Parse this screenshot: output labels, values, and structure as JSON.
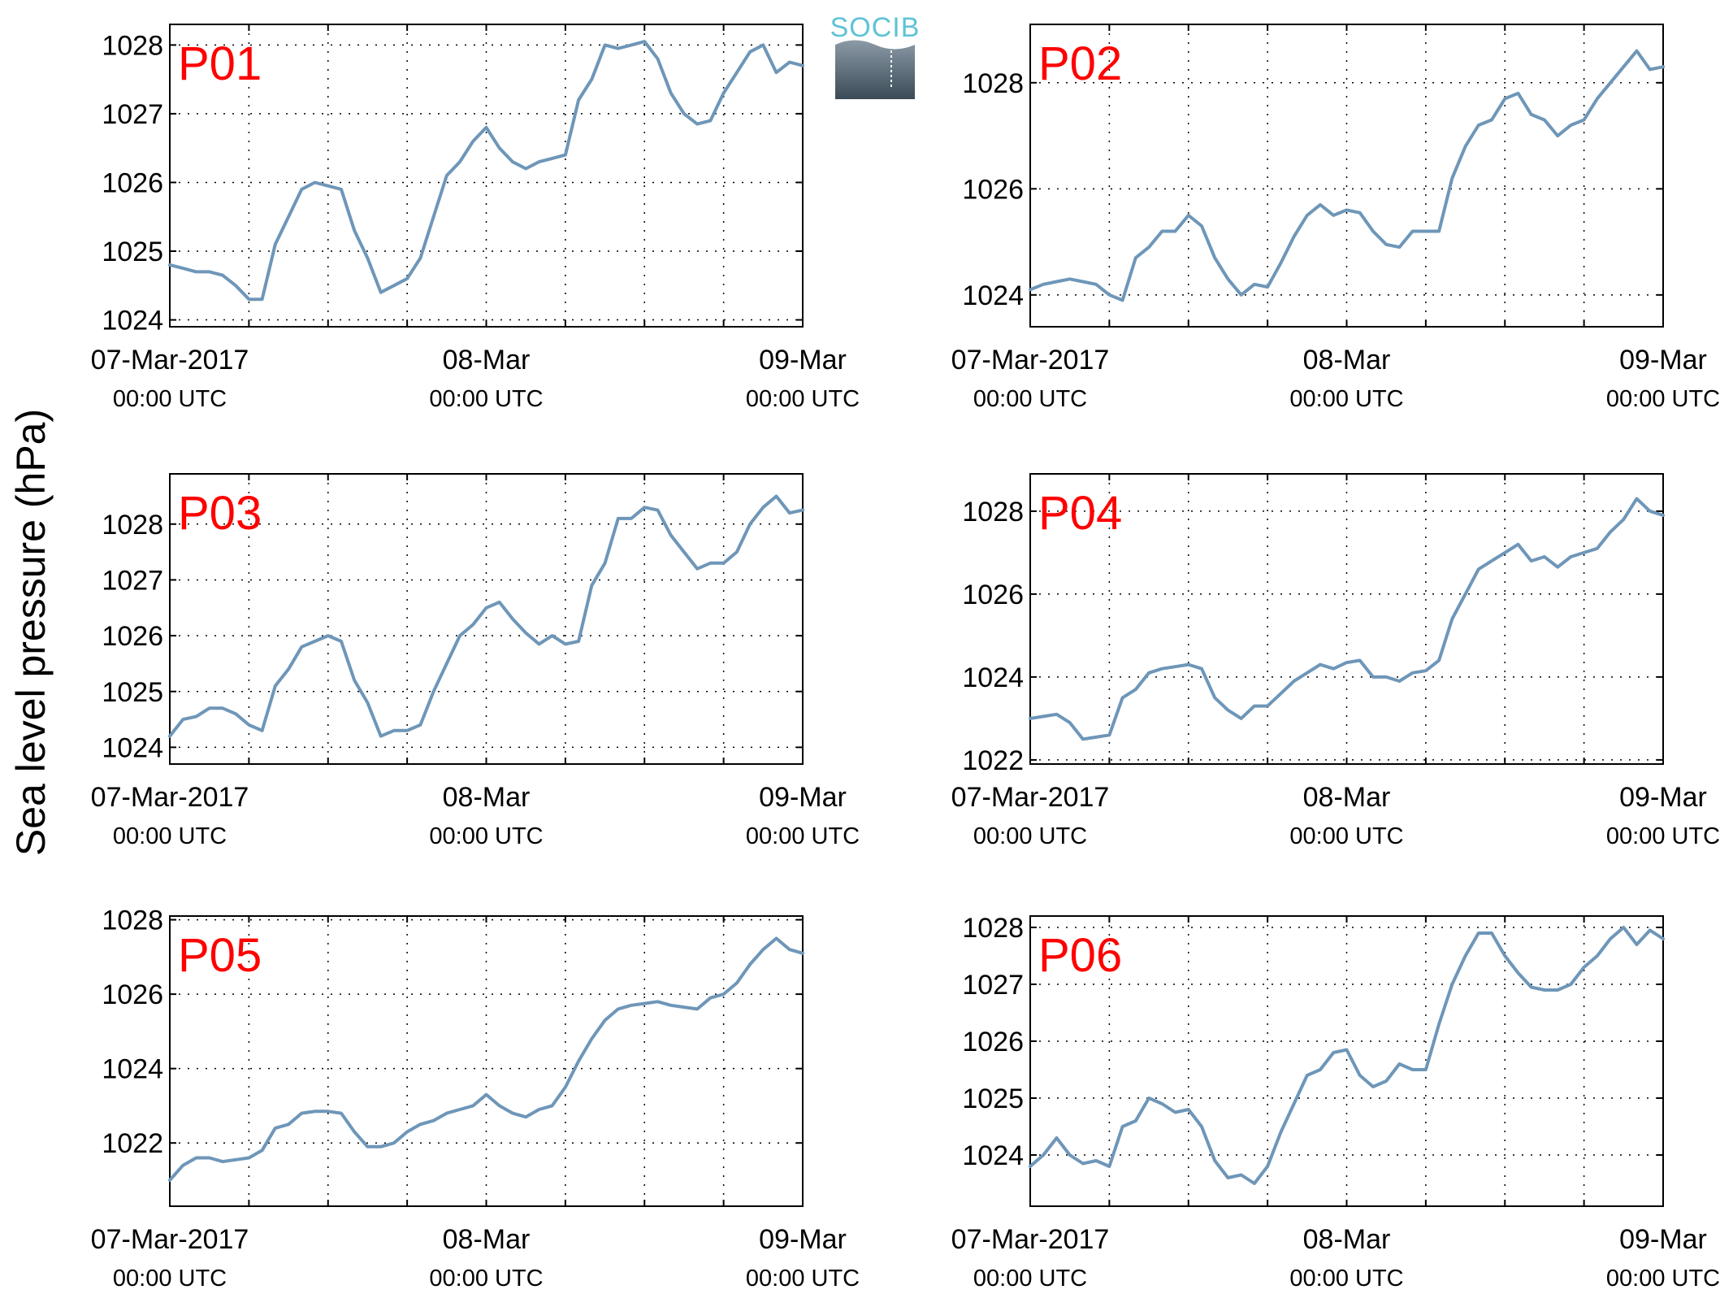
{
  "figure": {
    "ylabel": "Sea level pressure (hPa)",
    "logo_text": "SOCIB",
    "line_color": "#6e96b8",
    "label_color": "#ff0000"
  },
  "chart_data": [
    {
      "type": "line",
      "label": "P01",
      "x_start": "07-Mar-2017 00:00 UTC",
      "x_end": "09-Mar-2017 00:00 UTC",
      "x_unit": "hours",
      "xlim": [
        0,
        48
      ],
      "ylim": [
        1023.9,
        1028.3
      ],
      "yticks": [
        1024,
        1025,
        1026,
        1027,
        1028
      ],
      "xticks": [
        {
          "major": "07-Mar-2017",
          "minor": "00:00 UTC"
        },
        {
          "major": "08-Mar",
          "minor": "00:00 UTC"
        },
        {
          "major": "09-Mar",
          "minor": "00:00 UTC"
        }
      ],
      "grid": true,
      "x": [
        0,
        1,
        2,
        3,
        4,
        5,
        6,
        7,
        8,
        9,
        10,
        11,
        12,
        13,
        14,
        15,
        16,
        17,
        18,
        19,
        20,
        21,
        22,
        23,
        24,
        25,
        26,
        27,
        28,
        29,
        30,
        31,
        32,
        33,
        34,
        35,
        36,
        37,
        38,
        39,
        40,
        41,
        42,
        43,
        44,
        45,
        46,
        47,
        48
      ],
      "values": [
        1024.8,
        1024.75,
        1024.7,
        1024.7,
        1024.65,
        1024.5,
        1024.3,
        1024.3,
        1025.1,
        1025.5,
        1025.9,
        1026.0,
        1025.95,
        1025.9,
        1025.3,
        1024.9,
        1024.4,
        1024.5,
        1024.6,
        1024.9,
        1025.5,
        1026.1,
        1026.3,
        1026.6,
        1026.8,
        1026.5,
        1026.3,
        1026.2,
        1026.3,
        1026.35,
        1026.4,
        1027.2,
        1027.5,
        1028.0,
        1027.95,
        1028.0,
        1028.05,
        1027.8,
        1027.3,
        1027.0,
        1026.85,
        1026.9,
        1027.3,
        1027.6,
        1027.9,
        1028.0,
        1027.6,
        1027.75,
        1027.7
      ]
    },
    {
      "type": "line",
      "label": "P02",
      "x_start": "07-Mar-2017 00:00 UTC",
      "x_end": "09-Mar-2017 00:00 UTC",
      "x_unit": "hours",
      "xlim": [
        0,
        48
      ],
      "ylim": [
        1023.4,
        1029.1
      ],
      "yticks": [
        1024,
        1026,
        1028
      ],
      "xticks": [
        {
          "major": "07-Mar-2017",
          "minor": "00:00 UTC"
        },
        {
          "major": "08-Mar",
          "minor": "00:00 UTC"
        },
        {
          "major": "09-Mar",
          "minor": "00:00 UTC"
        }
      ],
      "grid": true,
      "x": [
        0,
        1,
        2,
        3,
        4,
        5,
        6,
        7,
        8,
        9,
        10,
        11,
        12,
        13,
        14,
        15,
        16,
        17,
        18,
        19,
        20,
        21,
        22,
        23,
        24,
        25,
        26,
        27,
        28,
        29,
        30,
        31,
        32,
        33,
        34,
        35,
        36,
        37,
        38,
        39,
        40,
        41,
        42,
        43,
        44,
        45,
        46,
        47,
        48
      ],
      "values": [
        1024.1,
        1024.2,
        1024.25,
        1024.3,
        1024.25,
        1024.2,
        1024.0,
        1023.9,
        1024.7,
        1024.9,
        1025.2,
        1025.2,
        1025.5,
        1025.3,
        1024.7,
        1024.3,
        1024.0,
        1024.2,
        1024.15,
        1024.6,
        1025.1,
        1025.5,
        1025.7,
        1025.5,
        1025.6,
        1025.55,
        1025.2,
        1024.95,
        1024.9,
        1025.2,
        1025.2,
        1025.2,
        1026.2,
        1026.8,
        1027.2,
        1027.3,
        1027.7,
        1027.8,
        1027.4,
        1027.3,
        1027.0,
        1027.2,
        1027.3,
        1027.7,
        1028.0,
        1028.3,
        1028.6,
        1028.25,
        1028.3
      ]
    },
    {
      "type": "line",
      "label": "P03",
      "x_start": "07-Mar-2017 00:00 UTC",
      "x_end": "09-Mar-2017 00:00 UTC",
      "x_unit": "hours",
      "xlim": [
        0,
        48
      ],
      "ylim": [
        1023.7,
        1028.9
      ],
      "yticks": [
        1024,
        1025,
        1026,
        1027,
        1028
      ],
      "xticks": [
        {
          "major": "07-Mar-2017",
          "minor": "00:00 UTC"
        },
        {
          "major": "08-Mar",
          "minor": "00:00 UTC"
        },
        {
          "major": "09-Mar",
          "minor": "00:00 UTC"
        }
      ],
      "grid": true,
      "x": [
        0,
        1,
        2,
        3,
        4,
        5,
        6,
        7,
        8,
        9,
        10,
        11,
        12,
        13,
        14,
        15,
        16,
        17,
        18,
        19,
        20,
        21,
        22,
        23,
        24,
        25,
        26,
        27,
        28,
        29,
        30,
        31,
        32,
        33,
        34,
        35,
        36,
        37,
        38,
        39,
        40,
        41,
        42,
        43,
        44,
        45,
        46,
        47,
        48
      ],
      "values": [
        1024.2,
        1024.5,
        1024.55,
        1024.7,
        1024.7,
        1024.6,
        1024.4,
        1024.3,
        1025.1,
        1025.4,
        1025.8,
        1025.9,
        1026.0,
        1025.9,
        1025.2,
        1024.8,
        1024.2,
        1024.3,
        1024.3,
        1024.4,
        1025.0,
        1025.5,
        1026.0,
        1026.2,
        1026.5,
        1026.6,
        1026.3,
        1026.05,
        1025.85,
        1026.0,
        1025.85,
        1025.9,
        1026.9,
        1027.3,
        1028.1,
        1028.1,
        1028.3,
        1028.25,
        1027.8,
        1027.5,
        1027.2,
        1027.3,
        1027.3,
        1027.5,
        1028.0,
        1028.3,
        1028.5,
        1028.2,
        1028.25
      ]
    },
    {
      "type": "line",
      "label": "P04",
      "x_start": "07-Mar-2017 00:00 UTC",
      "x_end": "09-Mar-2017 00:00 UTC",
      "x_unit": "hours",
      "xlim": [
        0,
        48
      ],
      "ylim": [
        1021.9,
        1028.9
      ],
      "yticks": [
        1022,
        1024,
        1026,
        1028
      ],
      "xticks": [
        {
          "major": "07-Mar-2017",
          "minor": "00:00 UTC"
        },
        {
          "major": "08-Mar",
          "minor": "00:00 UTC"
        },
        {
          "major": "09-Mar",
          "minor": "00:00 UTC"
        }
      ],
      "grid": true,
      "x": [
        0,
        1,
        2,
        3,
        4,
        5,
        6,
        7,
        8,
        9,
        10,
        11,
        12,
        13,
        14,
        15,
        16,
        17,
        18,
        19,
        20,
        21,
        22,
        23,
        24,
        25,
        26,
        27,
        28,
        29,
        30,
        31,
        32,
        33,
        34,
        35,
        36,
        37,
        38,
        39,
        40,
        41,
        42,
        43,
        44,
        45,
        46,
        47,
        48
      ],
      "values": [
        1023.0,
        1023.05,
        1023.1,
        1022.9,
        1022.5,
        1022.55,
        1022.6,
        1023.5,
        1023.7,
        1024.1,
        1024.2,
        1024.25,
        1024.3,
        1024.2,
        1023.5,
        1023.2,
        1023.0,
        1023.3,
        1023.3,
        1023.6,
        1023.9,
        1024.1,
        1024.3,
        1024.2,
        1024.35,
        1024.4,
        1024.0,
        1024.0,
        1023.9,
        1024.1,
        1024.15,
        1024.4,
        1025.4,
        1026.0,
        1026.6,
        1026.8,
        1027.0,
        1027.2,
        1026.8,
        1026.9,
        1026.65,
        1026.9,
        1027.0,
        1027.1,
        1027.5,
        1027.8,
        1028.3,
        1028.0,
        1027.9
      ]
    },
    {
      "type": "line",
      "label": "P05",
      "x_start": "07-Mar-2017 00:00 UTC",
      "x_end": "09-Mar-2017 00:00 UTC",
      "x_unit": "hours",
      "xlim": [
        0,
        48
      ],
      "ylim": [
        1020.3,
        1028.1
      ],
      "yticks": [
        1022,
        1024,
        1026,
        1028
      ],
      "xticks": [
        {
          "major": "07-Mar-2017",
          "minor": "00:00 UTC"
        },
        {
          "major": "08-Mar",
          "minor": "00:00 UTC"
        },
        {
          "major": "09-Mar",
          "minor": "00:00 UTC"
        }
      ],
      "grid": true,
      "x": [
        0,
        1,
        2,
        3,
        4,
        5,
        6,
        7,
        8,
        9,
        10,
        11,
        12,
        13,
        14,
        15,
        16,
        17,
        18,
        19,
        20,
        21,
        22,
        23,
        24,
        25,
        26,
        27,
        28,
        29,
        30,
        31,
        32,
        33,
        34,
        35,
        36,
        37,
        38,
        39,
        40,
        41,
        42,
        43,
        44,
        45,
        46,
        47,
        48
      ],
      "values": [
        1021.0,
        1021.4,
        1021.6,
        1021.6,
        1021.5,
        1021.55,
        1021.6,
        1021.8,
        1022.4,
        1022.5,
        1022.8,
        1022.85,
        1022.85,
        1022.8,
        1022.3,
        1021.9,
        1021.9,
        1022.0,
        1022.3,
        1022.5,
        1022.6,
        1022.8,
        1022.9,
        1023.0,
        1023.3,
        1023.0,
        1022.8,
        1022.7,
        1022.9,
        1023.0,
        1023.5,
        1024.2,
        1024.8,
        1025.3,
        1025.6,
        1025.7,
        1025.75,
        1025.8,
        1025.7,
        1025.65,
        1025.6,
        1025.9,
        1026.0,
        1026.3,
        1026.8,
        1027.2,
        1027.5,
        1027.2,
        1027.1
      ]
    },
    {
      "type": "line",
      "label": "P06",
      "x_start": "07-Mar-2017 00:00 UTC",
      "x_end": "09-Mar-2017 00:00 UTC",
      "x_unit": "hours",
      "xlim": [
        0,
        48
      ],
      "ylim": [
        1023.1,
        1028.2
      ],
      "yticks": [
        1024,
        1025,
        1026,
        1027,
        1028
      ],
      "xticks": [
        {
          "major": "07-Mar-2017",
          "minor": "00:00 UTC"
        },
        {
          "major": "08-Mar",
          "minor": "00:00 UTC"
        },
        {
          "major": "09-Mar",
          "minor": "00:00 UTC"
        }
      ],
      "grid": true,
      "x": [
        0,
        1,
        2,
        3,
        4,
        5,
        6,
        7,
        8,
        9,
        10,
        11,
        12,
        13,
        14,
        15,
        16,
        17,
        18,
        19,
        20,
        21,
        22,
        23,
        24,
        25,
        26,
        27,
        28,
        29,
        30,
        31,
        32,
        33,
        34,
        35,
        36,
        37,
        38,
        39,
        40,
        41,
        42,
        43,
        44,
        45,
        46,
        47,
        48
      ],
      "values": [
        1023.8,
        1024.0,
        1024.3,
        1024.0,
        1023.85,
        1023.9,
        1023.8,
        1024.5,
        1024.6,
        1025.0,
        1024.9,
        1024.75,
        1024.8,
        1024.5,
        1023.9,
        1023.6,
        1023.65,
        1023.5,
        1023.8,
        1024.4,
        1024.9,
        1025.4,
        1025.5,
        1025.8,
        1025.85,
        1025.4,
        1025.2,
        1025.3,
        1025.6,
        1025.5,
        1025.5,
        1026.3,
        1027.0,
        1027.5,
        1027.9,
        1027.9,
        1027.5,
        1027.2,
        1026.95,
        1026.9,
        1026.9,
        1027.0,
        1027.3,
        1027.5,
        1027.8,
        1028.0,
        1027.7,
        1027.95,
        1027.8
      ]
    }
  ]
}
